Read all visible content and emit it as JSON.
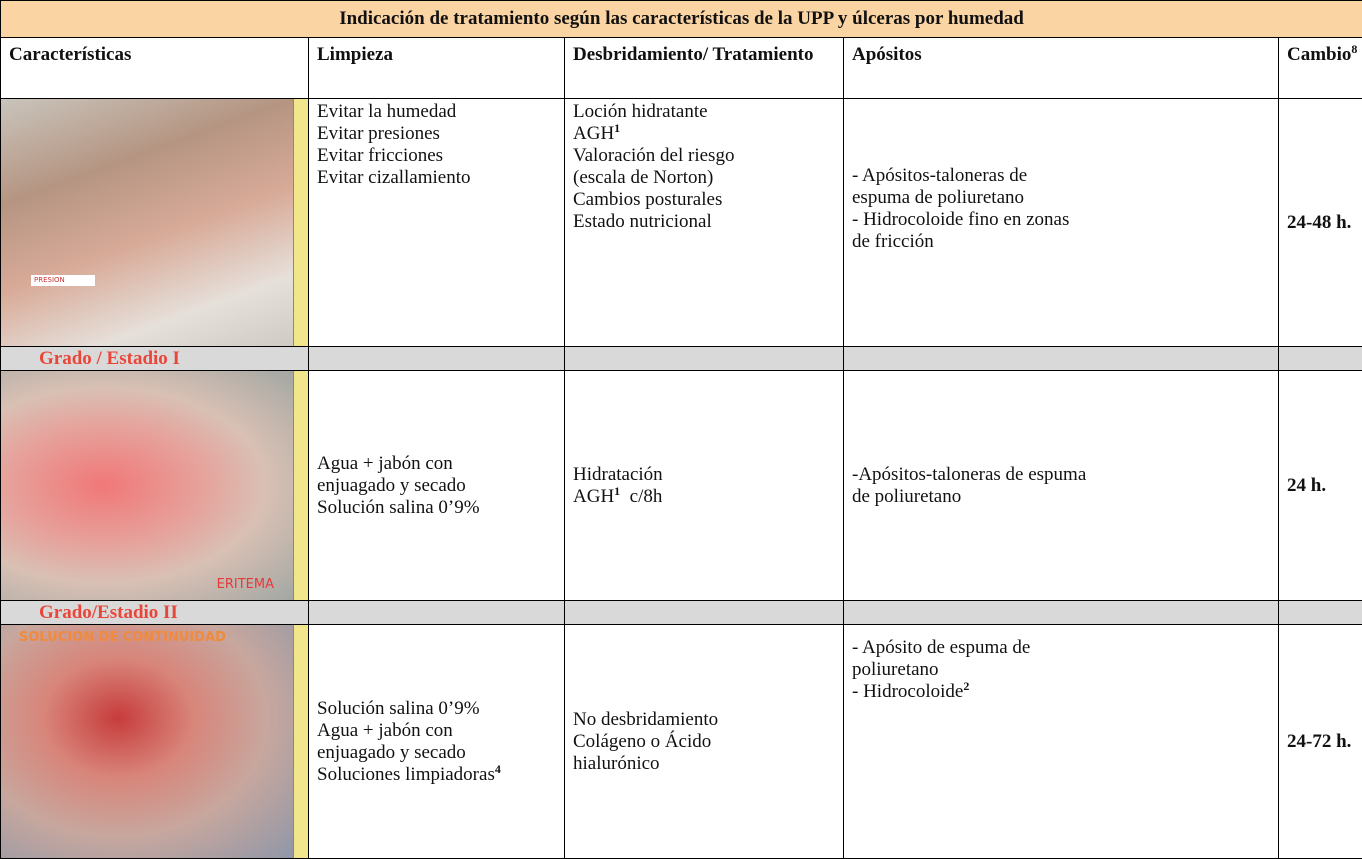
{
  "table": {
    "title": "Indicación de tratamiento según las características de la UPP y úlceras por humedad",
    "headers": [
      "Características",
      "Limpieza",
      "Desbridamiento/ Tratamiento",
      "Apósitos",
      "Cambio"
    ],
    "header_sup": "8",
    "rows": [
      {
        "image_label": "PRESION",
        "limpieza": [
          "Evitar la humedad",
          "Evitar presiones",
          "Evitar fricciones",
          "Evitar cizallamiento"
        ],
        "tratamiento": [
          "Loción hidratante",
          {
            "text": "AGH",
            "sup": "1"
          },
          "Valoración del riesgo",
          "(escala de Norton)",
          "Cambios posturales",
          "Estado nutricional"
        ],
        "apositos": [
          "- Apósitos-taloneras de",
          "espuma de poliuretano",
          "- Hidrocoloide fino en zonas",
          "de fricción"
        ],
        "cambio": "24-48 h."
      },
      {
        "band": "Grado / Estadio I"
      },
      {
        "image_label": "ERITEMA",
        "limpieza": [
          "Agua + jabón con",
          "enjuagado y secado",
          "Solución salina 0’9%"
        ],
        "tratamiento": [
          "Hidratación",
          {
            "text": "AGH",
            "sup": "1",
            "after": "c/8h"
          }
        ],
        "apositos": [
          "-Apósitos-taloneras de espuma",
          "de poliuretano"
        ],
        "cambio": "24 h."
      },
      {
        "band": "Grado/Estadio II"
      },
      {
        "image_label": "SOLUCION DE CONTINUIDAD",
        "limpieza": [
          "Solución salina 0’9%",
          "Agua + jabón con",
          "enjuagado y secado",
          {
            "text": "Soluciones limpiadoras",
            "sup": "4"
          }
        ],
        "tratamiento": [
          "No desbridamiento",
          "Colágeno o   Ácido",
          "hialurónico"
        ],
        "apositos": [
          "- Apósito de espuma de",
          "poliuretano",
          {
            "text": "- Hidrocoloide",
            "sup": "2"
          }
        ],
        "cambio": "24-72 h."
      }
    ]
  }
}
